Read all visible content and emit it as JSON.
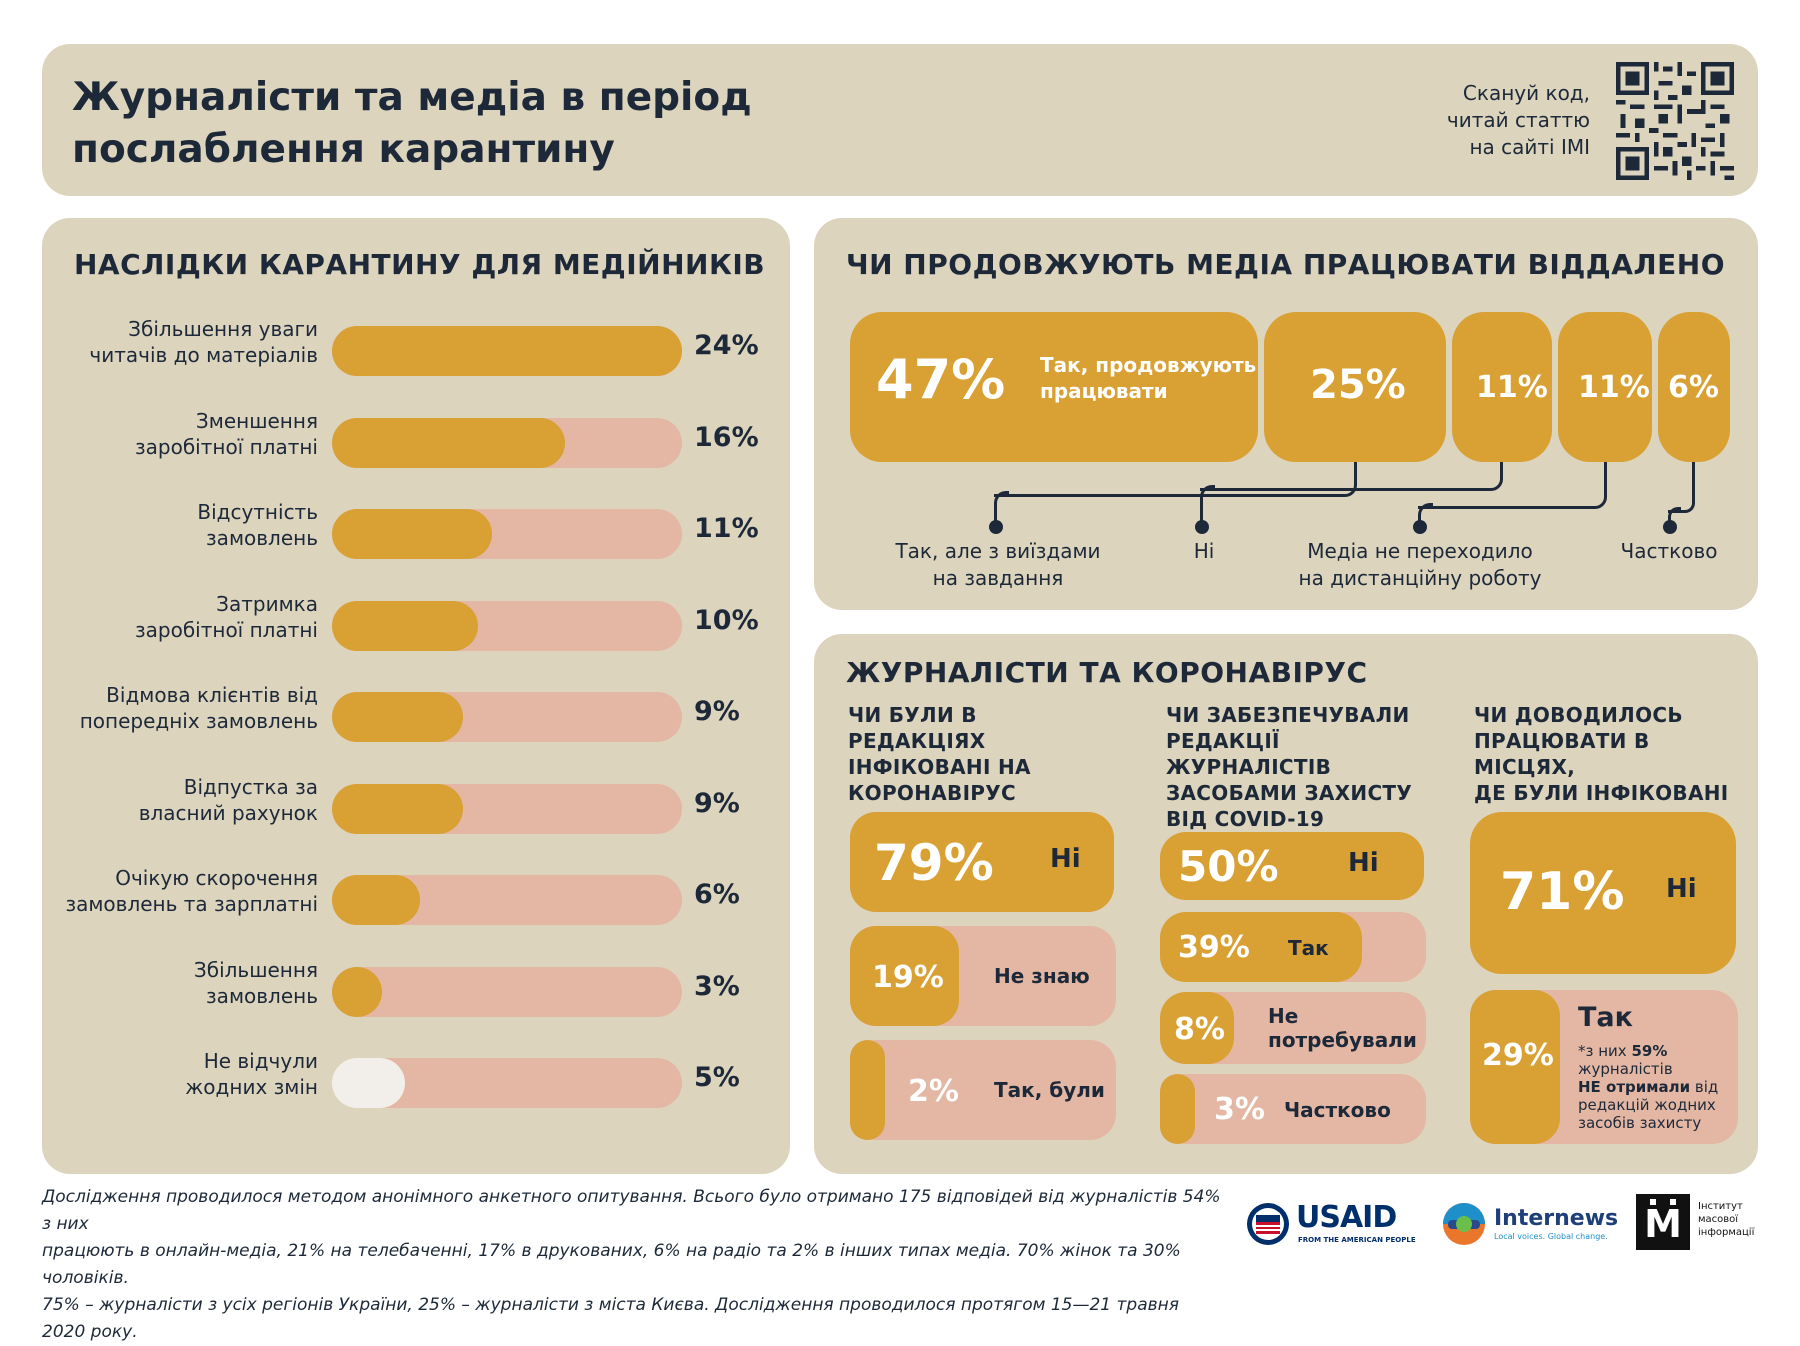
{
  "header": {
    "title_line1": "Журналісти та медіа в період",
    "title_line2": "послаблення карантину",
    "scan_line1": "Сканyй код,",
    "scan_line2": "читай статтю",
    "scan_line3": "на сайті ІМІ"
  },
  "left_panel": {
    "title": "НАСЛІДКИ КАРАНТИНУ ДЛЯ МЕДІЙНИКІВ"
  },
  "chart_data": [
    {
      "type": "bar",
      "title": "НАСЛІДКИ КАРАНТИНУ ДЛЯ МЕДІЙНИКІВ",
      "categories": [
        [
          "Збільшення уваги",
          "читачів до матеріалів"
        ],
        [
          "Зменшення",
          "заробітної платні"
        ],
        [
          "Відсутність",
          "замовлень"
        ],
        [
          "Затримка",
          "заробітної платні"
        ],
        [
          "Відмова клієнтів від",
          "попередніх замовлень"
        ],
        [
          "Відпустка за",
          "власний рахунок"
        ],
        [
          "Очікую скорочення",
          "замовлень та зарплатні"
        ],
        [
          "Збільшення",
          "замовлень"
        ],
        [
          "Не відчули",
          "жодних змін"
        ]
      ],
      "values": [
        24,
        16,
        11,
        10,
        9,
        9,
        6,
        3,
        5
      ],
      "labels": [
        "24%",
        "16%",
        "11%",
        "10%",
        "9%",
        "9%",
        "6%",
        "3%",
        "5%"
      ],
      "xlim": [
        0,
        24
      ]
    },
    {
      "type": "bar",
      "title": "ЧИ ПРОДОВЖУЮТЬ МЕДІА ПРАЦЮВАТИ ВІДДАЛЕНО",
      "categories": [
        "Так, продовжують працювати",
        "Так, але з виїздами на завдання",
        "Ні",
        "Медіа не переходило на дистанційну роботу",
        "Частково"
      ],
      "values": [
        47,
        25,
        11,
        11,
        6
      ],
      "labels": [
        "47%",
        "25%",
        "11%",
        "11%",
        "6%"
      ]
    },
    {
      "type": "bar",
      "title": "ЧИ БУЛИ В РЕДАКЦІЯХ ІНФІКОВАНІ НА КОРОНАВІРУС",
      "categories": [
        "Ні",
        "Не знаю",
        "Так, були"
      ],
      "values": [
        79,
        19,
        2
      ],
      "labels": [
        "79%",
        "19%",
        "2%"
      ]
    },
    {
      "type": "bar",
      "title": "ЧИ ЗАБЕЗПЕЧУВАЛИ РЕДАКЦІЇ ЖУРНАЛІСТІВ ЗАСОБАМИ ЗАХИСТУ ВІД COVID-19",
      "categories": [
        "Ні",
        "Так",
        "Не потребували",
        "Частково"
      ],
      "values": [
        50,
        39,
        8,
        3
      ],
      "labels": [
        "50%",
        "39%",
        "8%",
        "3%"
      ]
    },
    {
      "type": "bar",
      "title": "ЧИ ДОВОДИЛОСЬ ПРАЦЮВАТИ В МІСЦЯХ, ДЕ БУЛИ ІНФІКОВАНІ",
      "categories": [
        "Ні",
        "Так"
      ],
      "values": [
        71,
        29
      ],
      "labels": [
        "71%",
        "29%"
      ]
    }
  ],
  "remote": {
    "title": "ЧИ ПРОДОВЖУЮТЬ МЕДІА ПРАЦЮВАТИ ВІДДАЛЕНО",
    "b1_value": "47%",
    "b1_text1": "Так, продовжують",
    "b1_text2": "працювати",
    "b2_value": "25%",
    "b3_value": "11%",
    "b4_value": "11%",
    "b5_value": "6%",
    "l2_line1": "Так, але з виїздами",
    "l2_line2": "на завдання",
    "l3": "Ні",
    "l4_line1": "Медіа не переходило",
    "l4_line2": "на дистанційну роботу",
    "l5": "Частково"
  },
  "covid": {
    "title": "ЖУРНАЛІСТИ ТА КОРОНАВІРУС",
    "q1": [
      "ЧИ БУЛИ В РЕДАКЦІЯХ",
      "ІНФІКОВАНІ НА",
      "КОРОНАВІРУС"
    ],
    "q2": [
      "ЧИ ЗАБЕЗПЕЧУВАЛИ",
      "РЕДАКЦІЇ ЖУРНАЛІСТІВ",
      "ЗАСОБАМИ ЗАХИСТУ",
      "ВІД COVID-19"
    ],
    "q3": [
      "ЧИ ДОВОДИЛОСЬ",
      "ПРАЦЮВАТИ В МІСЦЯХ,",
      "ДЕ БУЛИ ІНФІКОВАНІ"
    ],
    "c1": [
      {
        "value": "79%",
        "label": "Ні",
        "fraction": 1.0
      },
      {
        "value": "19%",
        "label": "Не знаю",
        "fraction": 0.41
      },
      {
        "value": "2%",
        "label": "Так, були",
        "fraction": 0.13
      }
    ],
    "c2": [
      {
        "value": "50%",
        "label": "Ні",
        "fraction": 1.0
      },
      {
        "value": "39%",
        "label": "Так",
        "fraction": 0.76
      },
      {
        "value": "8%",
        "label1": "Не",
        "label2": "потребували",
        "fraction": 0.28
      },
      {
        "value": "3%",
        "label": "Частково",
        "fraction": 0.13
      }
    ],
    "c3": [
      {
        "value": "71%",
        "label": "Ні"
      },
      {
        "value": "29%",
        "label": "Так",
        "note_1": "*з них ",
        "note_bold1": "59%",
        "note_2": "журналістів",
        "note_bold2": "НЕ отримали",
        "note_3": " від",
        "note_4": "редакцій жодних",
        "note_5": "засобів захисту"
      }
    ]
  },
  "footer": {
    "line1": "Дослідження проводилося методом анонімного анкетного опитування. Всього було отримано 175 відповідей від журналістів 54% з них",
    "line2": "працюють в онлайн-медіа, 21% на телебаченні, 17% в друкованих, 6% на радіо та 2% в інших типах медіа. 70% жінок та 30% чоловіків.",
    "line3": "75% – журналісти з усіх регіонів України, 25% – журналісти з міста Києва. Дослідження проводилося протягом 15—21 травня 2020 року."
  },
  "logos": {
    "usaid": "USAID",
    "usaid_sub": "FROM THE AMERICAN PEOPLE",
    "internews": "Internews",
    "internews_sub": "Local voices. Global change.",
    "imi_letter": "М",
    "imi_line1": "Інститут",
    "imi_line2": "масової",
    "imi_line3": "інформації"
  },
  "colors": {
    "panel": "#dcd4bd",
    "gold": "#d9a034",
    "pink": "#e3b7a3",
    "navy": "#1d2939",
    "usaid_red": "#c8102e",
    "usaid_blue": "#002f6c"
  }
}
